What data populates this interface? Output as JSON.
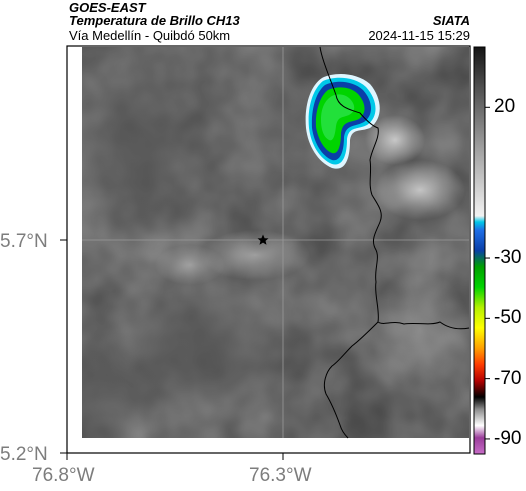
{
  "header": {
    "satellite": "GOES-EAST",
    "product": "Temperatura de Brillo CH13",
    "region": "Vía Medellín - Quibdó 50km",
    "agency": "SIATA",
    "timestamp": "2024-11-15 15:29"
  },
  "axes": {
    "lat_labels": [
      "5.7°N",
      "5.2°N"
    ],
    "lon_labels": [
      "76.8°W",
      "76.3°W"
    ]
  },
  "colorbar": {
    "tick_labels": [
      "20",
      "-30",
      "-50",
      "-70",
      "-90"
    ],
    "tick_values": [
      20,
      -30,
      -50,
      -70,
      -90
    ],
    "range": [
      -95,
      40
    ]
  },
  "colors": {
    "cold_core": "#00d400",
    "cloud_edge": "#0a3fa8",
    "cloud_rim": "#00c8e8",
    "boundary": "#000000"
  },
  "markers": {
    "star_icon": "star-icon"
  }
}
